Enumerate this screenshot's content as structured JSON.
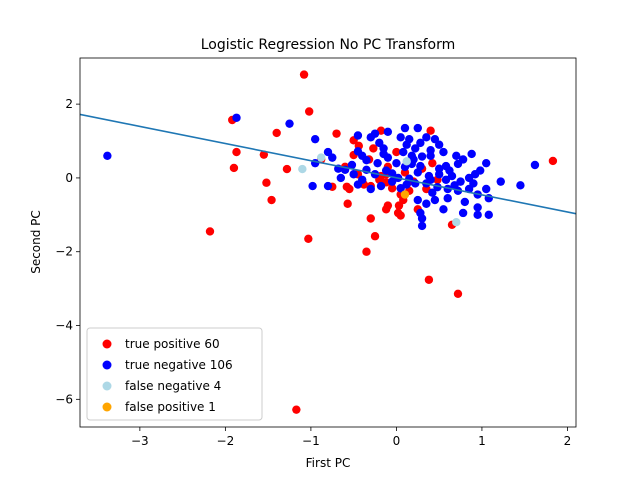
{
  "chart_data": {
    "type": "scatter",
    "title": "Logistic Regression No PC Transform",
    "xlabel": "First PC",
    "ylabel": "Second PC",
    "xlim": [
      -3.7,
      2.1
    ],
    "ylim": [
      -6.75,
      3.25
    ],
    "xticks": [
      -3,
      -2,
      -1,
      0,
      1,
      2
    ],
    "xtick_labels": [
      "−3",
      "−2",
      "−1",
      "0",
      "1",
      "2"
    ],
    "yticks": [
      -6,
      -4,
      -2,
      0,
      2
    ],
    "ytick_labels": [
      "−6",
      "−4",
      "−2",
      "0",
      "2"
    ],
    "grid": false,
    "legend_position": "lower-left",
    "line": {
      "color": "#1f77b4",
      "x": [
        -3.7,
        2.1
      ],
      "y": [
        1.72,
        -0.97
      ]
    },
    "series": [
      {
        "name": "true positive 60",
        "color": "#ff0000",
        "points": [
          [
            -1.08,
            2.8
          ],
          [
            -1.02,
            1.8
          ],
          [
            -1.92,
            1.57
          ],
          [
            -1.4,
            1.22
          ],
          [
            -0.7,
            1.2
          ],
          [
            -0.5,
            1.02
          ],
          [
            -0.44,
            0.87
          ],
          [
            -1.87,
            0.7
          ],
          [
            -1.55,
            0.63
          ],
          [
            -0.88,
            0.5
          ],
          [
            -0.5,
            0.62
          ],
          [
            -1.9,
            0.27
          ],
          [
            -1.28,
            0.24
          ],
          [
            -0.75,
            -0.24
          ],
          [
            -0.58,
            -0.24
          ],
          [
            -0.3,
            -0.22
          ],
          [
            -0.4,
            -0.1
          ],
          [
            -1.52,
            -0.13
          ],
          [
            -1.46,
            -0.6
          ],
          [
            -0.57,
            -0.7
          ],
          [
            -0.12,
            -0.12
          ],
          [
            -0.05,
            -0.28
          ],
          [
            0.05,
            -0.45
          ],
          [
            0.08,
            -0.6
          ],
          [
            0.03,
            -0.75
          ],
          [
            -0.1,
            -0.75
          ],
          [
            -0.12,
            -0.85
          ],
          [
            0.02,
            -0.95
          ],
          [
            0.05,
            -1.02
          ],
          [
            -0.3,
            -1.1
          ],
          [
            -0.25,
            -1.58
          ],
          [
            -0.35,
            -2.0
          ],
          [
            -1.03,
            -1.65
          ],
          [
            -2.18,
            -1.45
          ],
          [
            0.38,
            -2.76
          ],
          [
            0.72,
            -3.14
          ],
          [
            -1.17,
            -6.28
          ],
          [
            0.65,
            -1.27
          ],
          [
            0.25,
            -0.85
          ],
          [
            1.83,
            0.46
          ],
          [
            0.4,
            1.28
          ],
          [
            -0.18,
            1.28
          ],
          [
            -0.1,
            0.3
          ],
          [
            -0.18,
            0.05
          ],
          [
            -0.27,
            0.8
          ],
          [
            -0.12,
            0.1
          ],
          [
            0.0,
            0.7
          ],
          [
            0.1,
            0.15
          ],
          [
            0.2,
            -0.1
          ],
          [
            0.35,
            -0.3
          ],
          [
            -0.55,
            -0.3
          ],
          [
            -0.38,
            -0.18
          ],
          [
            -0.45,
            0.1
          ],
          [
            -0.6,
            0.3
          ],
          [
            0.42,
            0.4
          ],
          [
            0.48,
            -0.05
          ],
          [
            -0.2,
            -0.05
          ],
          [
            0.15,
            -0.35
          ],
          [
            0.3,
            0.25
          ],
          [
            -0.32,
            0.5
          ]
        ]
      },
      {
        "name": "true negative 106",
        "color": "#0000ff",
        "points": [
          [
            -3.38,
            0.6
          ],
          [
            -1.87,
            1.63
          ],
          [
            -1.25,
            1.47
          ],
          [
            -0.95,
            1.05
          ],
          [
            -0.45,
            1.15
          ],
          [
            -0.3,
            1.1
          ],
          [
            -0.25,
            1.2
          ],
          [
            -0.15,
            0.8
          ],
          [
            0.1,
            1.35
          ],
          [
            0.25,
            1.35
          ],
          [
            0.35,
            1.1
          ],
          [
            0.45,
            1.05
          ],
          [
            0.5,
            0.9
          ],
          [
            0.05,
            1.1
          ],
          [
            0.15,
            1.05
          ],
          [
            0.28,
            0.95
          ],
          [
            -0.8,
            0.7
          ],
          [
            -0.75,
            0.55
          ],
          [
            -0.95,
            0.4
          ],
          [
            -0.68,
            0.25
          ],
          [
            -0.52,
            0.35
          ],
          [
            -0.4,
            0.6
          ],
          [
            -0.35,
            0.48
          ],
          [
            -0.22,
            0.4
          ],
          [
            -0.1,
            0.55
          ],
          [
            0.08,
            0.7
          ],
          [
            0.18,
            0.6
          ],
          [
            0.3,
            0.58
          ],
          [
            0.4,
            0.6
          ],
          [
            0.55,
            0.7
          ],
          [
            0.7,
            0.6
          ],
          [
            0.88,
            0.65
          ],
          [
            0.78,
            0.5
          ],
          [
            1.05,
            0.4
          ],
          [
            0.98,
            0.2
          ],
          [
            0.62,
            0.2
          ],
          [
            0.5,
            0.1
          ],
          [
            0.38,
            0.05
          ],
          [
            0.25,
            0.15
          ],
          [
            0.1,
            0.3
          ],
          [
            0.0,
            0.4
          ],
          [
            -0.12,
            0.2
          ],
          [
            -0.25,
            0.1
          ],
          [
            -0.35,
            0.22
          ],
          [
            -0.5,
            0.1
          ],
          [
            -0.45,
            -0.18
          ],
          [
            -0.3,
            -0.3
          ],
          [
            -0.18,
            -0.22
          ],
          [
            -0.05,
            -0.1
          ],
          [
            0.12,
            -0.18
          ],
          [
            0.22,
            -0.15
          ],
          [
            0.35,
            -0.15
          ],
          [
            0.48,
            -0.25
          ],
          [
            0.6,
            -0.3
          ],
          [
            0.72,
            -0.35
          ],
          [
            0.85,
            -0.3
          ],
          [
            0.95,
            -0.45
          ],
          [
            1.05,
            -0.3
          ],
          [
            1.22,
            -0.1
          ],
          [
            1.45,
            -0.2
          ],
          [
            1.62,
            0.35
          ],
          [
            0.8,
            -0.65
          ],
          [
            0.95,
            -0.8
          ],
          [
            0.78,
            -0.95
          ],
          [
            0.95,
            -1.0
          ],
          [
            1.08,
            -1.0
          ],
          [
            0.55,
            -0.85
          ],
          [
            0.45,
            -0.6
          ],
          [
            0.35,
            -0.7
          ],
          [
            0.28,
            -0.95
          ],
          [
            0.3,
            -1.1
          ],
          [
            0.3,
            -1.3
          ],
          [
            -0.98,
            -0.22
          ],
          [
            -0.8,
            -0.22
          ],
          [
            -0.65,
            0.0
          ],
          [
            -0.4,
            -0.05
          ],
          [
            0.02,
            0.0
          ],
          [
            0.15,
            -0.02
          ],
          [
            0.28,
            0.32
          ],
          [
            0.4,
            -0.05
          ],
          [
            0.58,
            -0.05
          ],
          [
            0.68,
            -0.2
          ],
          [
            0.75,
            -0.1
          ],
          [
            0.85,
            0.0
          ],
          [
            -0.05,
            0.12
          ],
          [
            0.05,
            -0.28
          ],
          [
            -0.15,
            0.65
          ],
          [
            -0.2,
            0.95
          ],
          [
            -0.6,
            0.22
          ],
          [
            0.22,
            0.8
          ],
          [
            0.5,
            0.25
          ],
          [
            0.65,
            0.05
          ],
          [
            0.92,
            0.1
          ],
          [
            1.08,
            -0.55
          ],
          [
            0.18,
            0.38
          ],
          [
            -0.1,
            1.25
          ],
          [
            0.4,
            0.75
          ],
          [
            0.58,
            0.32
          ],
          [
            0.2,
            0.5
          ],
          [
            -0.45,
            0.72
          ],
          [
            0.12,
            0.9
          ],
          [
            0.72,
            0.38
          ],
          [
            0.9,
            -0.15
          ],
          [
            0.6,
            -0.55
          ],
          [
            0.42,
            -0.4
          ],
          [
            0.25,
            -0.6
          ]
        ]
      },
      {
        "name": "false negative 4",
        "color": "#add8e6",
        "points": [
          [
            -1.1,
            0.24
          ],
          [
            0.7,
            -1.2
          ],
          [
            -0.88,
            0.55
          ],
          [
            0.12,
            0.45
          ]
        ]
      },
      {
        "name": "false positive 1",
        "color": "#ffa500",
        "points": [
          [
            0.1,
            -0.45
          ]
        ]
      }
    ]
  }
}
